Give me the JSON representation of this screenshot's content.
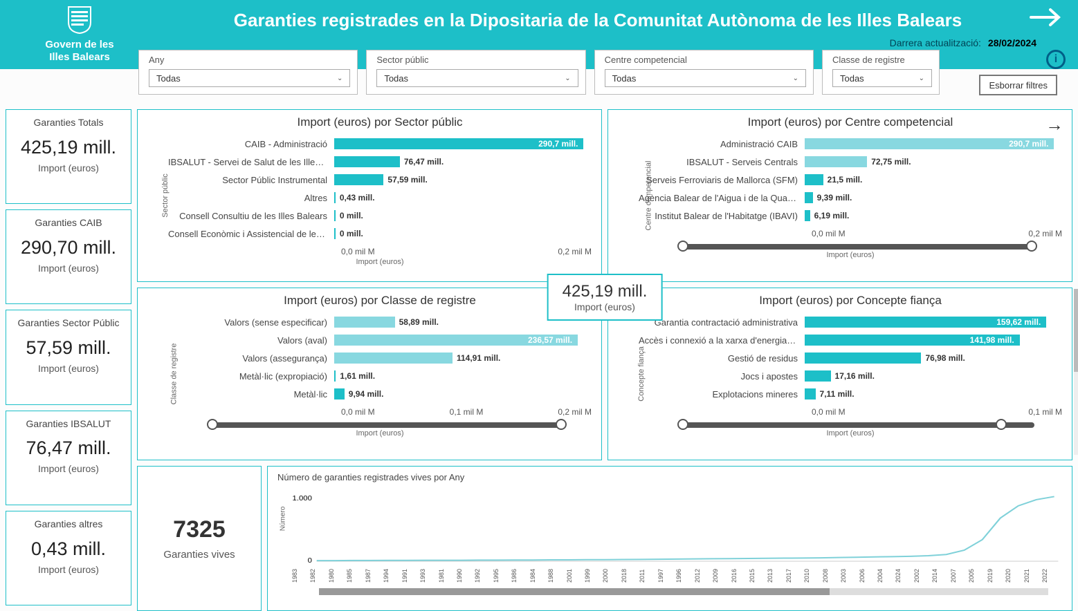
{
  "header": {
    "org_line1": "Govern de les",
    "org_line2": "Illes Balears",
    "title": "Garanties registrades en la Dipositaria de la Comunitat Autònoma de les Illes Balears",
    "update_label": "Darrera actualització:",
    "update_date": "28/02/2024"
  },
  "filters": {
    "items": [
      {
        "label": "Any",
        "value": "Todas"
      },
      {
        "label": "Sector públic",
        "value": "Todas"
      },
      {
        "label": "Centre competencial",
        "value": "Todas"
      },
      {
        "label": "Classe de registre",
        "value": "Todas"
      }
    ],
    "clear": "Esborrar filtres"
  },
  "side": [
    {
      "title": "Garanties Totals",
      "value": "425,19 mill.",
      "sub": "Import (euros)"
    },
    {
      "title": "Garanties CAIB",
      "value": "290,70 mill.",
      "sub": "Import (euros)"
    },
    {
      "title": "Garanties Sector Públic",
      "value": "57,59 mill.",
      "sub": "Import (euros)"
    },
    {
      "title": "Garanties IBSALUT",
      "value": "76,47 mill.",
      "sub": "Import (euros)"
    },
    {
      "title": "Garanties altres",
      "value": "0,43 mill.",
      "sub": "Import (euros)"
    }
  ],
  "center": {
    "value": "425,19 mill.",
    "sub": "Import (euros)"
  },
  "charts": {
    "sector": {
      "title": "Import (euros) por Sector públic",
      "ylabel": "Sector públic",
      "xname": "Import (euros)",
      "xticks": [
        "0,0 mil M",
        "0,2 mil M"
      ],
      "max": 300,
      "colors": {
        "primary": "#1dbfc8",
        "alt": "#88d8e0"
      },
      "bars": [
        {
          "label": "CAIB - Administració",
          "value": 290.7,
          "text": "290,7 mill.",
          "inside": true
        },
        {
          "label": "IBSALUT - Servei de Salut de les Illes Bal…",
          "value": 76.47,
          "text": "76,47 mill."
        },
        {
          "label": "Sector Públic Instrumental",
          "value": 57.59,
          "text": "57,59 mill."
        },
        {
          "label": "Altres",
          "value": 0.43,
          "text": "0,43 mill."
        },
        {
          "label": "Consell Consultiu de les Illes Balears",
          "value": 0,
          "text": "0 mill."
        },
        {
          "label": "Consell Econòmic i Assistencial de les Ille…",
          "value": 0,
          "text": "0 mill."
        }
      ]
    },
    "centre": {
      "title": "Import (euros) por Centre competencial",
      "ylabel": "Centre competencial",
      "xname": "Import (euros)",
      "xticks": [
        "0,0 mil M",
        "0,2 mil M"
      ],
      "max": 300,
      "bars": [
        {
          "label": "Administració CAIB",
          "value": 290.7,
          "text": "290,7 mill.",
          "inside": true,
          "light": true
        },
        {
          "label": "IBSALUT - Serveis Centrals",
          "value": 72.75,
          "text": "72,75 mill.",
          "light": true
        },
        {
          "label": "Serveis Ferroviaris de Mallorca (SFM)",
          "value": 21.5,
          "text": "21,5 mill."
        },
        {
          "label": "Agència Balear de l'Aigua i de la Qual…",
          "value": 9.39,
          "text": "9,39 mill."
        },
        {
          "label": "Institut Balear de l'Habitatge (IBAVI)",
          "value": 6.19,
          "text": "6,19 mill."
        }
      ]
    },
    "classe": {
      "title": "Import (euros) por Classe de registre",
      "ylabel": "Classe de registre",
      "xname": "Import (euros)",
      "xticks": [
        "0,0 mil M",
        "0,1 mil M",
        "0,2 mil M"
      ],
      "max": 250,
      "bars": [
        {
          "label": "Valors (sense especificar)",
          "value": 58.89,
          "text": "58,89 mill.",
          "light": true
        },
        {
          "label": "Valors (aval)",
          "value": 236.57,
          "text": "236,57 mill.",
          "inside": true,
          "light": true
        },
        {
          "label": "Valors (assegurança)",
          "value": 114.91,
          "text": "114,91 mill.",
          "light": true
        },
        {
          "label": "Metàl·lic (expropiació)",
          "value": 1.61,
          "text": "1,61 mill."
        },
        {
          "label": "Metàl·lic",
          "value": 9.94,
          "text": "9,94 mill."
        }
      ]
    },
    "concepte": {
      "title": "Import (euros) por Concepte fiança",
      "ylabel": "Concepte fiança",
      "xname": "Import (euros)",
      "xticks": [
        "0,0 mil M",
        "0,1 mil M"
      ],
      "max": 170,
      "bars": [
        {
          "label": "Garantia contractació administrativa",
          "value": 159.62,
          "text": "159,62 mill.",
          "inside": true
        },
        {
          "label": "Accès i connexió a la xarxa d'energia …",
          "value": 141.98,
          "text": "141,98 mill.",
          "inside": true
        },
        {
          "label": "Gestió de residus",
          "value": 76.98,
          "text": "76,98 mill."
        },
        {
          "label": "Jocs i apostes",
          "value": 17.16,
          "text": "17,16 mill."
        },
        {
          "label": "Explotacions mineres",
          "value": 7.11,
          "text": "7,11 mill."
        }
      ]
    }
  },
  "vives": {
    "value": "7325",
    "label": "Garanties vives"
  },
  "linechart": {
    "title": "Número de garanties registrades vives por Any",
    "ylabel": "Número",
    "yticks": [
      "1.000",
      "0"
    ],
    "years": [
      "1983",
      "1982",
      "1980",
      "1985",
      "1987",
      "1994",
      "1991",
      "1993",
      "1981",
      "1990",
      "1992",
      "1995",
      "1986",
      "1984",
      "1988",
      "2001",
      "1999",
      "2000",
      "2018",
      "2011",
      "1997",
      "1996",
      "2012",
      "2009",
      "2016",
      "2015",
      "2013",
      "2017",
      "2010",
      "2008",
      "2003",
      "2006",
      "2004",
      "2024",
      "2002",
      "2014",
      "2007",
      "2005",
      "2019",
      "2020",
      "2021",
      "2022"
    ],
    "color": "#7fd1d9",
    "values": [
      10,
      10,
      12,
      12,
      14,
      14,
      15,
      15,
      16,
      18,
      18,
      20,
      20,
      22,
      22,
      25,
      25,
      28,
      30,
      32,
      35,
      38,
      40,
      42,
      45,
      48,
      50,
      52,
      55,
      60,
      65,
      70,
      75,
      80,
      90,
      110,
      180,
      350,
      700,
      900,
      1000,
      1050
    ],
    "ymax": 1100
  }
}
